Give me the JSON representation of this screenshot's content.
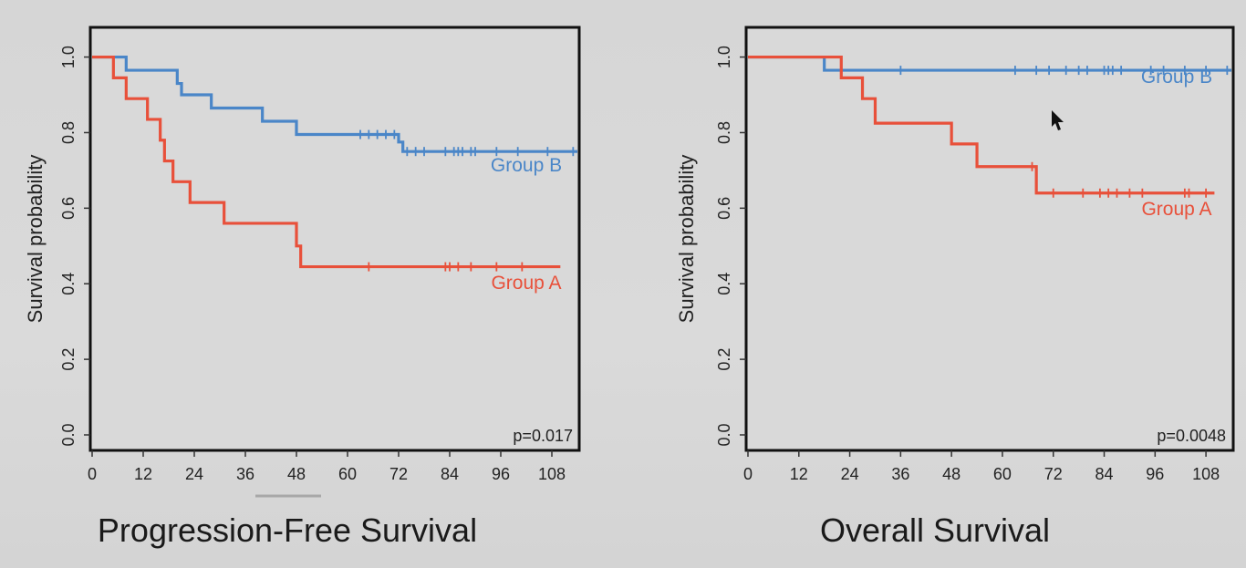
{
  "chart_data": [
    {
      "type": "line",
      "subtype": "kaplan-meier",
      "title": "Progression-Free Survival",
      "xlabel": "",
      "ylabel": "Survival probability",
      "xlim": [
        0,
        114
      ],
      "ylim": [
        0,
        1.04
      ],
      "xticks": [
        "0",
        "12",
        "24",
        "36",
        "48",
        "60",
        "72",
        "84",
        "96",
        "108"
      ],
      "yticks": [
        "0.0",
        "0.2",
        "0.4",
        "0.6",
        "0.8",
        "1.0"
      ],
      "annotation": "p=0.017",
      "series": [
        {
          "name": "Group B",
          "color": "#4a86c8",
          "steps": [
            [
              0,
              1.0
            ],
            [
              8,
              0.965
            ],
            [
              20,
              0.93
            ],
            [
              21,
              0.9
            ],
            [
              28,
              0.865
            ],
            [
              40,
              0.83
            ],
            [
              48,
              0.795
            ],
            [
              72,
              0.775
            ],
            [
              73,
              0.75
            ],
            [
              114,
              0.75
            ]
          ],
          "censors": [
            63,
            65,
            67,
            69,
            71,
            74,
            76,
            78,
            83,
            85,
            86,
            87,
            89,
            90,
            95,
            100,
            107,
            113
          ]
        },
        {
          "name": "Group A",
          "color": "#e8503a",
          "steps": [
            [
              0,
              1.0
            ],
            [
              5,
              0.945
            ],
            [
              8,
              0.89
            ],
            [
              13,
              0.835
            ],
            [
              16,
              0.78
            ],
            [
              17,
              0.725
            ],
            [
              19,
              0.67
            ],
            [
              23,
              0.615
            ],
            [
              31,
              0.56
            ],
            [
              48,
              0.5
            ],
            [
              49,
              0.445
            ],
            [
              110,
              0.445
            ]
          ],
          "censors": [
            65,
            83,
            84,
            86,
            89,
            95,
            101
          ]
        }
      ],
      "legend": [
        {
          "label": "Group B",
          "color": "#4a86c8"
        },
        {
          "label": "Group A",
          "color": "#e8503a"
        }
      ]
    },
    {
      "type": "line",
      "subtype": "kaplan-meier",
      "title": "Overall Survival",
      "xlabel": "",
      "ylabel": "Survival probability",
      "xlim": [
        0,
        114
      ],
      "ylim": [
        0,
        1.04
      ],
      "xticks": [
        "0",
        "12",
        "24",
        "36",
        "48",
        "60",
        "72",
        "84",
        "96",
        "108"
      ],
      "yticks": [
        "0.0",
        "0.2",
        "0.4",
        "0.6",
        "0.8",
        "1.0"
      ],
      "annotation": "p=0.0048",
      "series": [
        {
          "name": "Group B",
          "color": "#4a86c8",
          "steps": [
            [
              0,
              1.0
            ],
            [
              18,
              0.965
            ],
            [
              114,
              0.965
            ]
          ],
          "censors": [
            36,
            63,
            68,
            71,
            75,
            78,
            80,
            84,
            85,
            86,
            88,
            95,
            98,
            103,
            108,
            113
          ]
        },
        {
          "name": "Group A",
          "color": "#e8503a",
          "steps": [
            [
              0,
              1.0
            ],
            [
              22,
              0.945
            ],
            [
              27,
              0.89
            ],
            [
              30,
              0.825
            ],
            [
              48,
              0.77
            ],
            [
              54,
              0.71
            ],
            [
              68,
              0.64
            ],
            [
              110,
              0.64
            ]
          ],
          "censors": [
            67,
            72,
            79,
            83,
            85,
            87,
            90,
            93,
            103,
            104,
            108
          ]
        }
      ],
      "legend": [
        {
          "label": "Group B",
          "color": "#4a86c8"
        },
        {
          "label": "Group A",
          "color": "#e8503a"
        }
      ]
    }
  ]
}
